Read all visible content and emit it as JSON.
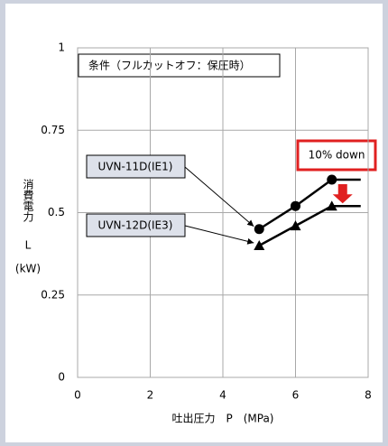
{
  "chart_data": {
    "type": "line",
    "annotation": "条件（フルカットオフ：保圧時）",
    "callout": "10% down",
    "xlabel": "吐出圧力　P　(MPa)",
    "ylabel": [
      "消費電力",
      "L",
      "(kW)"
    ],
    "x": [
      5,
      6,
      7
    ],
    "series": [
      {
        "name": "UVN-11D(IE1)",
        "color": "#000000",
        "marker": "circle",
        "values": [
          0.45,
          0.52,
          0.6
        ]
      },
      {
        "name": "UVN-12D(IE3)",
        "color": "#000000",
        "marker": "triangle",
        "values": [
          0.4,
          0.46,
          0.52
        ]
      }
    ],
    "xlim": [
      0,
      8
    ],
    "xticks": [
      0,
      2,
      4,
      6,
      8
    ],
    "ylim": [
      0,
      1
    ],
    "yticks": [
      0,
      0.25,
      0.5,
      0.75,
      1
    ],
    "grid": true
  }
}
